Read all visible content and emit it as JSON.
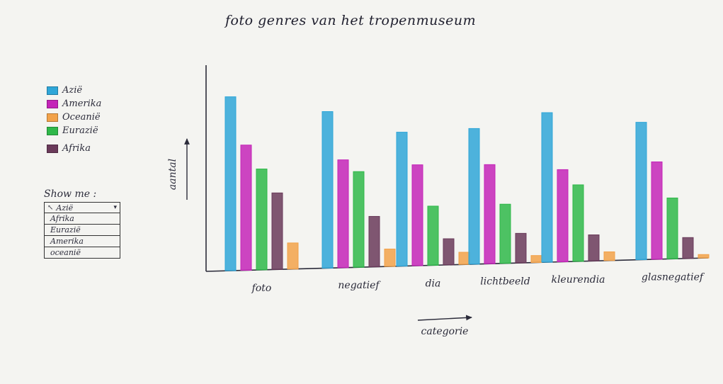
{
  "title": "foto genres   van   het  tropenmuseum",
  "legend": {
    "items": [
      {
        "name": "Azië",
        "color": "#2fa6d8"
      },
      {
        "name": "Amerika",
        "color": "#c424b8"
      },
      {
        "name": "Oceanië",
        "color": "#f2a24a"
      },
      {
        "name": "Eurazië",
        "color": "#2fb84a"
      },
      {
        "name": "Afrika",
        "color": "#6a3a5a"
      }
    ]
  },
  "showme": {
    "label": "Show me :",
    "selected": "Azië",
    "options": [
      "Afrika",
      "Eurazië",
      "Amerika",
      "oceanië"
    ]
  },
  "chart_data": {
    "type": "bar",
    "title": "foto genres van het tropenmuseum",
    "xlabel": "categorie",
    "ylabel": "aantal",
    "categories": [
      "foto",
      "negatief",
      "dia",
      "lichtbeeld",
      "kleurendia",
      "glasnegatief"
    ],
    "series": [
      {
        "name": "Azië",
        "color": "#2fa6d8",
        "values": [
          100,
          90,
          77,
          78,
          86,
          79
        ]
      },
      {
        "name": "Amerika",
        "color": "#c424b8",
        "values": [
          72,
          62,
          58,
          57,
          53,
          56
        ]
      },
      {
        "name": "Eurazië",
        "color": "#2fb84a",
        "values": [
          58,
          55,
          34,
          34,
          44,
          35
        ]
      },
      {
        "name": "Afrika",
        "color": "#6a3a5a",
        "values": [
          44,
          29,
          15,
          17,
          15,
          12
        ]
      },
      {
        "name": "Oceanië",
        "color": "#f2a24a",
        "values": [
          15,
          10,
          7,
          4,
          5,
          2
        ]
      }
    ],
    "ylim": [
      0,
      110
    ],
    "grid": false,
    "legend": "left"
  }
}
